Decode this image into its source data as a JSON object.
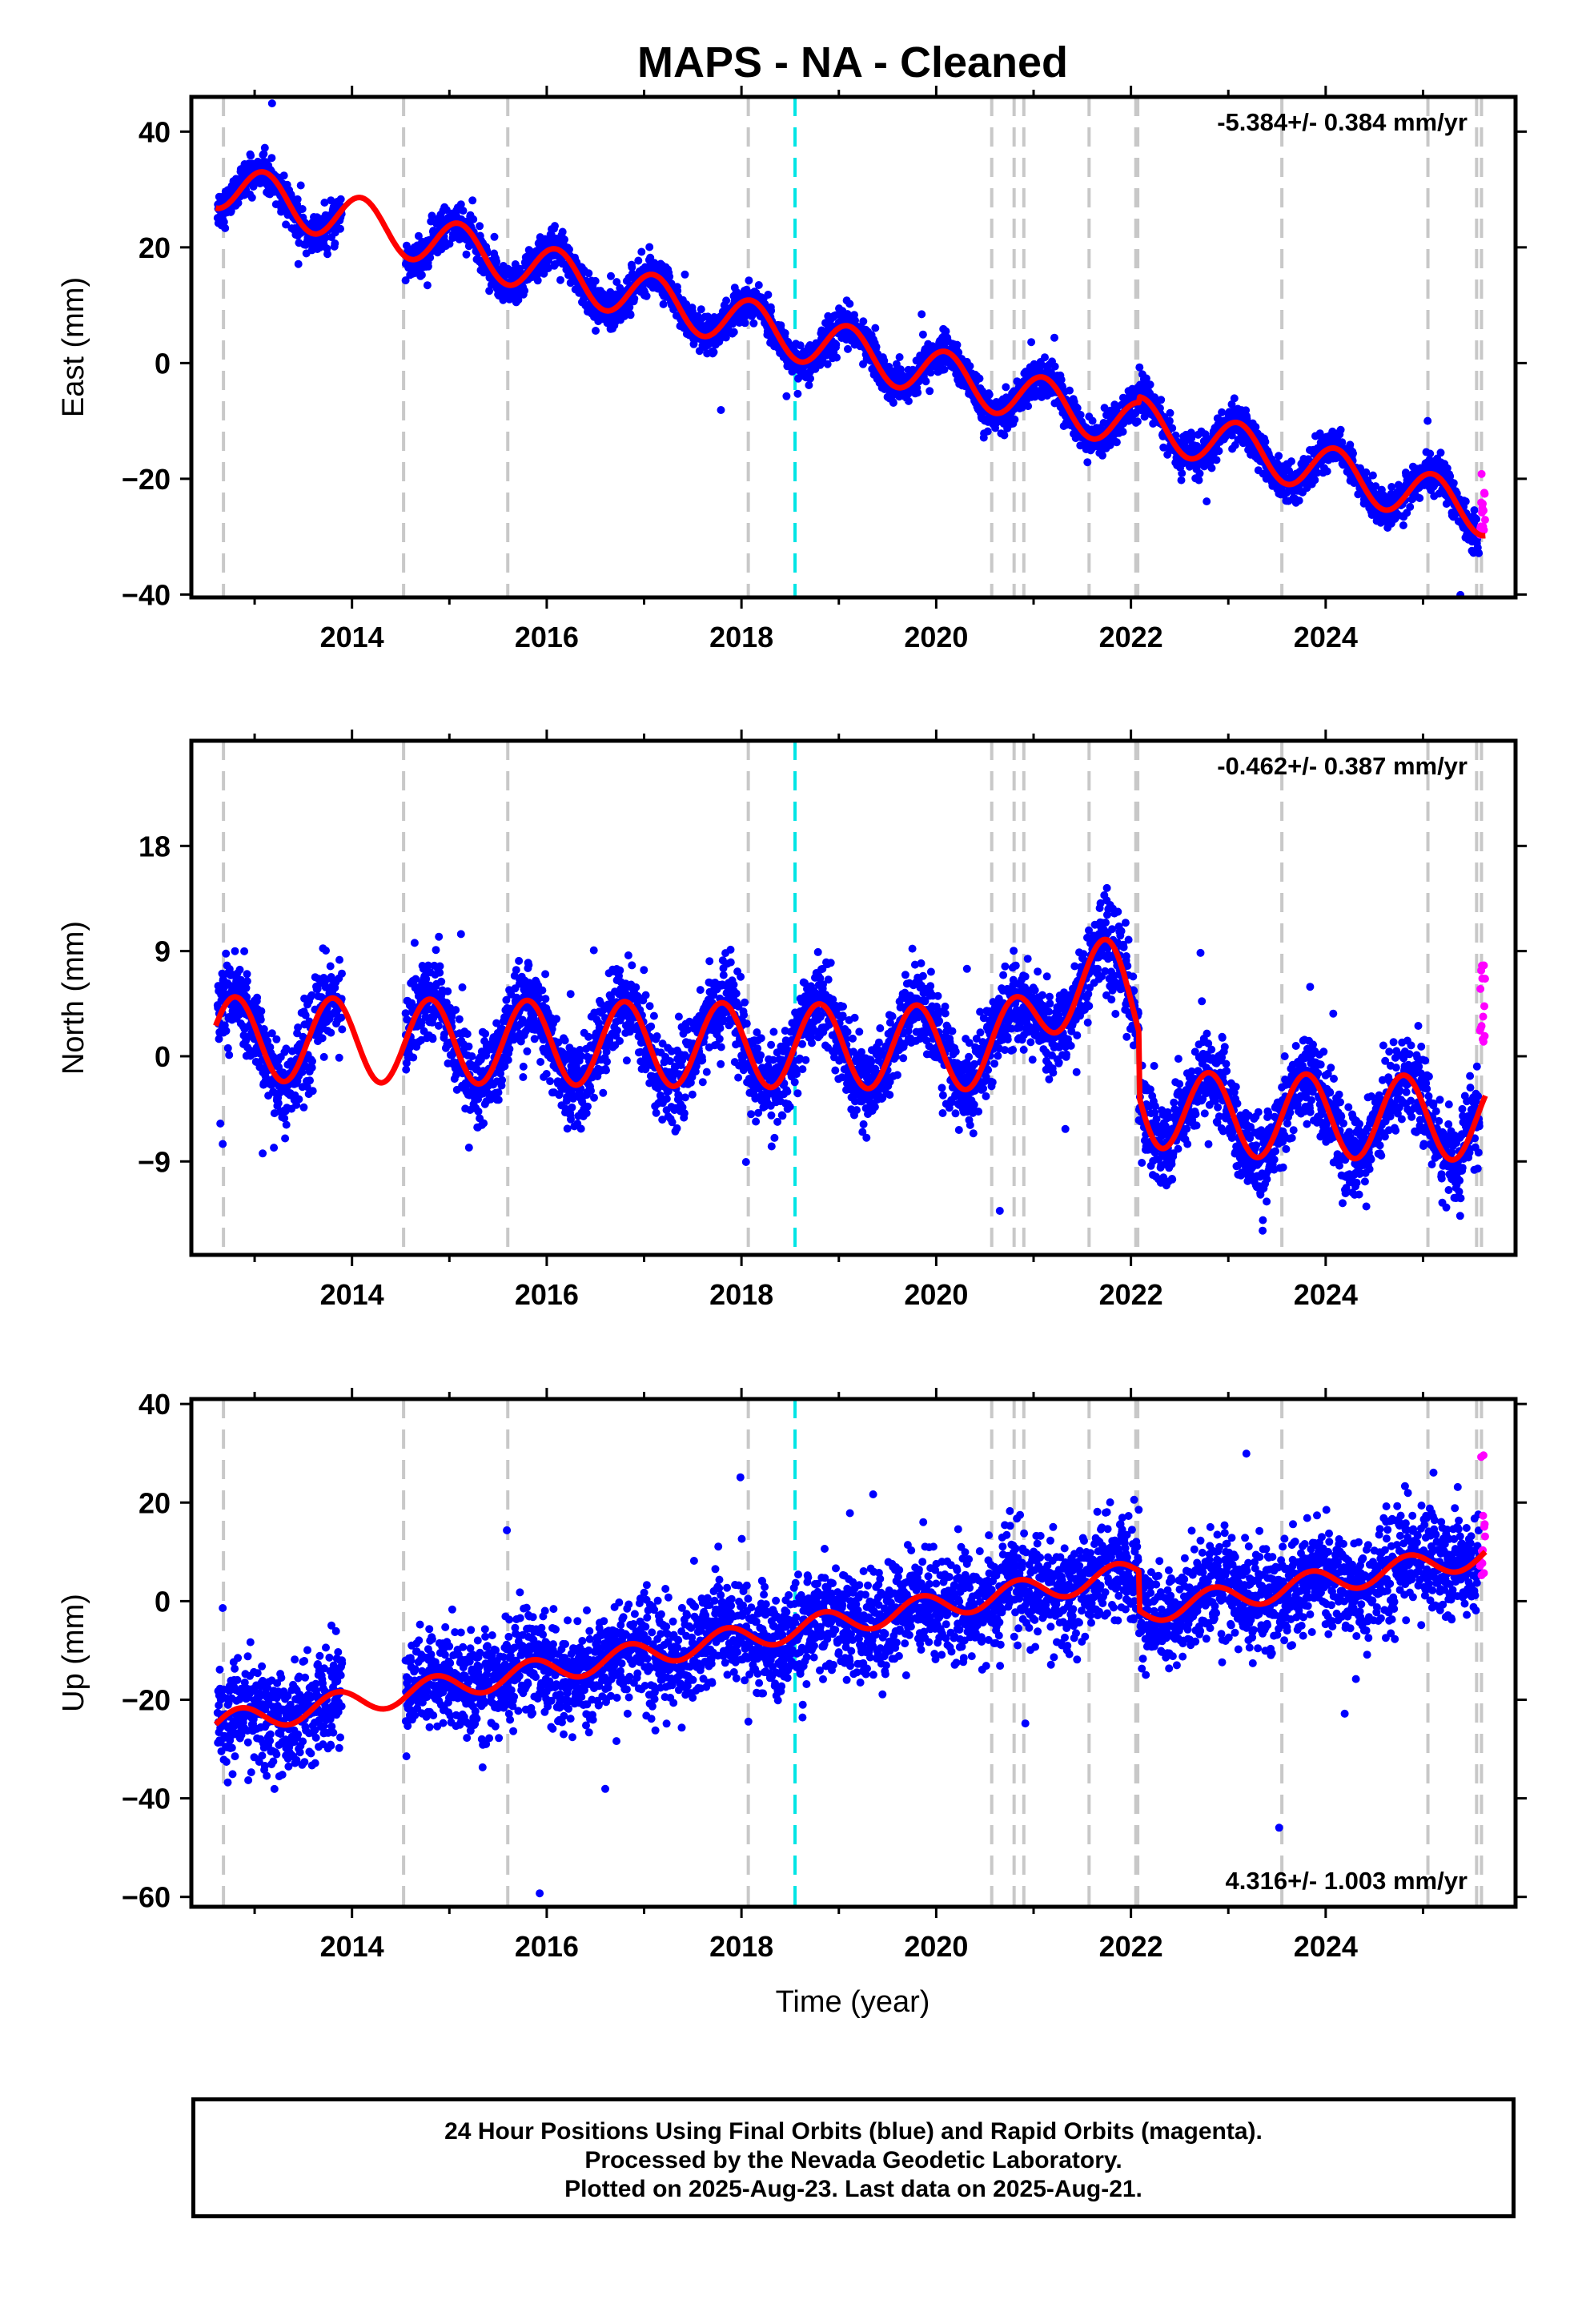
{
  "title": "MAPS  - NA - Cleaned",
  "xlabel": "Time (year)",
  "caption": [
    "24 Hour Positions Using Final Orbits (blue) and Rapid Orbits (magenta).",
    "Processed by the Nevada Geodetic Laboratory.",
    "Plotted on 2025-Aug-23. Last data on 2025-Aug-21."
  ],
  "colors": {
    "final": "#0000ff",
    "rapid": "#ff00ff",
    "model": "#ff0000",
    "equipment_change": "#c8c8c8",
    "earthquake": "#00e5e5"
  },
  "chart_data": [
    {
      "type": "scatter",
      "panel": "east",
      "ylabel": "East (mm)",
      "rate_label": "-5.384+/- 0.384 mm/yr",
      "rate_position": "top-right",
      "xlim": [
        2012.35,
        2025.95
      ],
      "ylim": [
        -40.5,
        46
      ],
      "xticks": [
        2014,
        2016,
        2018,
        2020,
        2022,
        2024
      ],
      "yticks": [
        -40,
        -20,
        0,
        20,
        40
      ],
      "ytick_labels": [
        "−40",
        "−20",
        "0",
        "20",
        "40"
      ],
      "trend": {
        "ref_year": 2012.6,
        "ref_value": 31.0,
        "rate": -4.43
      },
      "seasonal": {
        "amplitude": 4.2,
        "phase_year": 0.85
      },
      "scatter_sd": 1.6,
      "model_steps": [
        {
          "year": 2022.08,
          "delta": 1.0
        }
      ],
      "rapid_range": [
        -30,
        -18
      ]
    },
    {
      "type": "scatter",
      "panel": "north",
      "ylabel": "North (mm)",
      "rate_label": "-0.462+/- 0.387 mm/yr",
      "rate_position": "top-right",
      "xlim": [
        2012.35,
        2025.95
      ],
      "ylim": [
        -17,
        27
      ],
      "xticks": [
        2014,
        2016,
        2018,
        2020,
        2022,
        2024
      ],
      "yticks": [
        -9,
        0,
        9,
        18
      ],
      "ytick_labels": [
        "−9",
        "0",
        "9",
        "18"
      ],
      "trend": {
        "ref_year": 2012.6,
        "ref_value": 1.5,
        "rate": -0.1
      },
      "seasonal": {
        "amplitude": 3.6,
        "phase_year": 0.55
      },
      "scatter_sd": 1.8,
      "model_bump": {
        "center": 2021.55,
        "width": 0.5,
        "height": 7.0
      },
      "model_steps": [
        {
          "year": 2022.08,
          "delta": -5.5
        }
      ],
      "rapid_range": [
        1,
        8
      ]
    },
    {
      "type": "scatter",
      "panel": "up",
      "ylabel": "Up (mm)",
      "rate_label": "4.316+/- 1.003 mm/yr",
      "rate_position": "bottom-right",
      "xlim": [
        2012.35,
        2025.95
      ],
      "ylim": [
        -62,
        41
      ],
      "xticks": [
        2014,
        2016,
        2018,
        2020,
        2022,
        2024
      ],
      "yticks": [
        -60,
        -40,
        -20,
        0,
        20,
        40
      ],
      "ytick_labels": [
        "−60",
        "−40",
        "−20",
        "0",
        "20",
        "40"
      ],
      "trend": {
        "ref_year": 2012.6,
        "ref_value": -25.0,
        "rate": 3.25
      },
      "seasonal": {
        "amplitude": 2.5,
        "phase_year": 0.6
      },
      "scatter_sd": 5.2,
      "model_steps": [
        {
          "year": 2022.08,
          "delta": -8.0
        }
      ],
      "rapid_range": [
        5,
        33
      ]
    }
  ],
  "data_gap": [
    2013.9,
    2014.55
  ],
  "equipment_lines": [
    2012.68,
    2014.53,
    2015.6,
    2018.07,
    2020.57,
    2020.8,
    2020.9,
    2021.57,
    2022.05,
    2022.07,
    2023.55,
    2025.05,
    2025.55,
    2025.6
  ],
  "earthquake_lines": [
    2018.55
  ],
  "last_year": 2025.64
}
